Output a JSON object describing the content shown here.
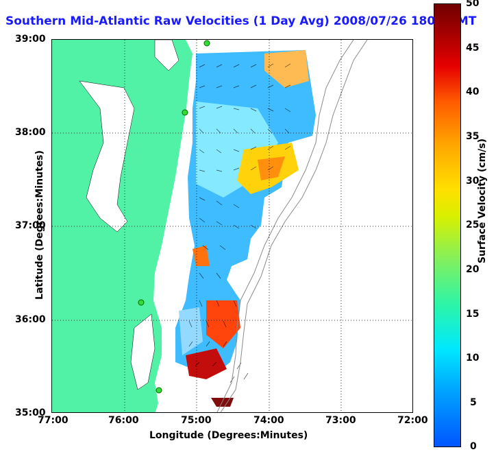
{
  "title": "Southern Mid-Atlantic Raw Velocities (1 Day Avg) 2008/07/26 1800 GMT",
  "axes": {
    "xlabel": "Longitude (Degrees:Minutes)",
    "ylabel": "Latitude (Degrees:Minutes)",
    "xticks": [
      "77:00",
      "76:00",
      "75:00",
      "74:00",
      "73:00",
      "72:00"
    ],
    "yticks": [
      "39:00",
      "38:00",
      "37:00",
      "36:00",
      "35:00"
    ]
  },
  "colorbar": {
    "label": "Surface Velocity (cm/s)",
    "ticks": [
      "50",
      "45",
      "40",
      "35",
      "30",
      "25",
      "20",
      "15",
      "10",
      "5",
      "0"
    ],
    "range": [
      0,
      50
    ]
  },
  "colors": {
    "land": "#52f2a6",
    "title": "#1a1aff",
    "site_marker": "#33dd33"
  }
}
